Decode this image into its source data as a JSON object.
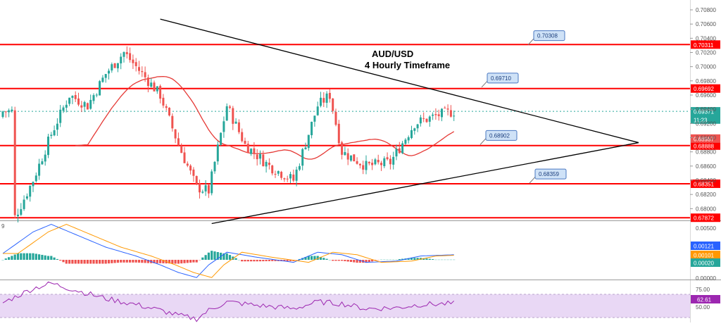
{
  "colors": {
    "up": "#26a69a",
    "down": "#ef5350",
    "level_line": "#ff0000",
    "trend_line": "#000000",
    "ma_line": "#e53935",
    "macd_line": "#2962ff",
    "signal_line": "#ff9800",
    "rsi_line": "#9c27b0",
    "rsi_band": "#e9d8f5",
    "callout_fill": "#cfe2f7",
    "callout_stroke": "#4a78c2"
  },
  "chart_data": [
    {
      "type": "candlestick",
      "title_line1": "AUD/USD",
      "title_line2": "4 Hourly Timeframe",
      "y_ticks": [
        "0.70800",
        "0.70600",
        "0.70400",
        "0.70200",
        "0.70000",
        "0.69800",
        "0.69600",
        "0.69400",
        "0.69200",
        "0.69000",
        "0.68800",
        "0.68600",
        "0.68400",
        "0.68200",
        "0.68000",
        "0.67800"
      ],
      "ylim": [
        0.6775,
        0.7092
      ],
      "grid": false,
      "x": {
        "count": 150
      },
      "ohlc_overview": [
        {
          "x": 4,
          "close": 0.6788
        },
        {
          "x": 10,
          "close": 0.684
        },
        {
          "x": 16,
          "close": 0.6905
        },
        {
          "x": 22,
          "close": 0.696
        },
        {
          "x": 28,
          "close": 0.6945
        },
        {
          "x": 34,
          "close": 0.699
        },
        {
          "x": 40,
          "close": 0.702
        },
        {
          "x": 46,
          "close": 0.699
        },
        {
          "x": 52,
          "close": 0.696
        },
        {
          "x": 58,
          "close": 0.689
        },
        {
          "x": 64,
          "close": 0.683
        },
        {
          "x": 68,
          "close": 0.6825
        },
        {
          "x": 74,
          "close": 0.6945
        },
        {
          "x": 80,
          "close": 0.689
        },
        {
          "x": 88,
          "close": 0.686
        },
        {
          "x": 96,
          "close": 0.684
        },
        {
          "x": 104,
          "close": 0.6945
        },
        {
          "x": 108,
          "close": 0.696
        },
        {
          "x": 112,
          "close": 0.688
        },
        {
          "x": 120,
          "close": 0.686
        },
        {
          "x": 128,
          "close": 0.6865
        },
        {
          "x": 136,
          "close": 0.692
        },
        {
          "x": 144,
          "close": 0.6932
        },
        {
          "x": 149,
          "close": 0.6937
        }
      ],
      "levels": [
        {
          "value": 0.70311,
          "label": "0.70311"
        },
        {
          "value": 0.69692,
          "label": "0.69692"
        },
        {
          "value": 0.68888,
          "label": "0.68888"
        },
        {
          "value": 0.68351,
          "label": "0.68351"
        },
        {
          "value": 0.67872,
          "label": "0.67872"
        }
      ],
      "price_badges": [
        {
          "value": 0.69371,
          "label": "0.69371",
          "color": "#26a69a"
        },
        {
          "value": 0.69255,
          "label": "11:23",
          "color": "#26a69a"
        },
        {
          "value": 0.68987,
          "label": "0.68987",
          "color": "#ef5350"
        }
      ],
      "callouts": [
        {
          "label": "0.70308",
          "value": 0.70308
        },
        {
          "label": "0.69710",
          "value": 0.6971
        },
        {
          "label": "0.68902",
          "value": 0.68902
        },
        {
          "label": "0.68359",
          "value": 0.68359
        }
      ],
      "trendlines": [
        {
          "name": "upper",
          "from": {
            "x": 52,
            "y": 0.7067
          },
          "to": {
            "x": 210,
            "y": 0.6893
          }
        },
        {
          "name": "lower",
          "from": {
            "x": 69,
            "y": 0.6779
          },
          "to": {
            "x": 210,
            "y": 0.6893
          }
        }
      ]
    },
    {
      "type": "line",
      "indicator": "MACD",
      "pane_label": "9",
      "y_badges": [
        {
          "label": "0.00121",
          "color": "#2962ff"
        },
        {
          "label": "0.00101",
          "color": "#ff9800"
        },
        {
          "label": "0.00020",
          "color": "#26a69a"
        }
      ],
      "y_ticks": [
        "0.00500",
        "0.00000"
      ]
    },
    {
      "type": "line",
      "indicator": "RSI",
      "y_ticks": [
        "75.00",
        "50.00"
      ],
      "current": "62.61",
      "band": [
        30,
        70
      ]
    }
  ]
}
